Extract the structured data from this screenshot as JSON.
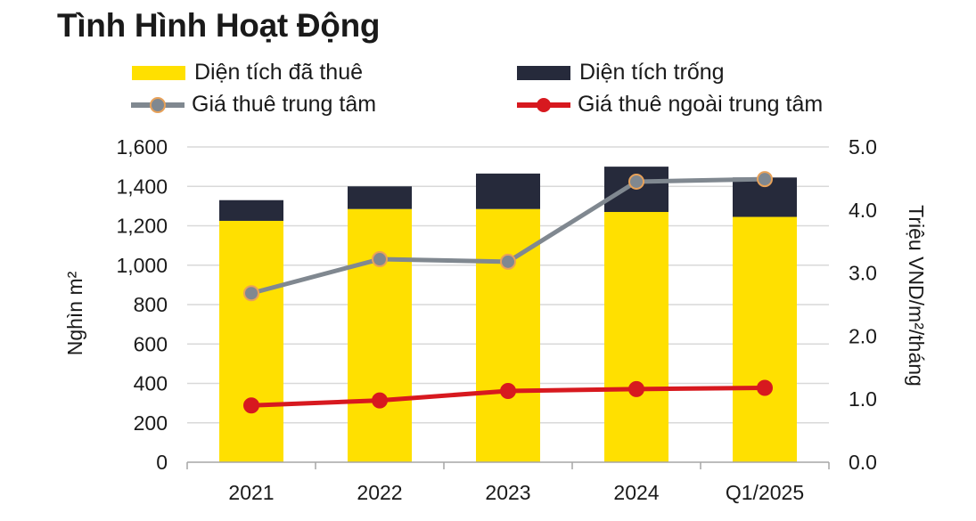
{
  "chart_data": {
    "type": "bar",
    "title": "Tình Hình Hoạt Động",
    "categories": [
      "2021",
      "2022",
      "2023",
      "2024",
      "Q1/2025"
    ],
    "ylabel": "Nghìn m²",
    "y2label": "Triệu VND/m²/tháng",
    "ylim": [
      0,
      1600
    ],
    "y2lim": [
      0,
      5.0
    ],
    "yticks": [
      "0",
      "200",
      "400",
      "600",
      "800",
      "1,000",
      "1,200",
      "1,400",
      "1,600"
    ],
    "y2ticks": [
      "0.0",
      "1.0",
      "2.0",
      "3.0",
      "4.0",
      "5.0"
    ],
    "grid": true,
    "stacked": true,
    "series": [
      {
        "name": "Diện tích đã thuê",
        "kind": "bar",
        "axis": "left",
        "color": "#FFE000",
        "values": [
          1225,
          1285,
          1285,
          1270,
          1245
        ]
      },
      {
        "name": "Diện tích trống",
        "kind": "bar",
        "axis": "left",
        "color": "#262A3B",
        "values": [
          105,
          115,
          180,
          230,
          200
        ]
      },
      {
        "name": "Giá thuê trung tâm",
        "kind": "line",
        "axis": "right",
        "color": "#808890",
        "marker_fill": "#808890",
        "marker_edge": "#E8A25A",
        "values": [
          2.68,
          3.22,
          3.18,
          4.45,
          4.49
        ]
      },
      {
        "name": "Giá thuê ngoài trung tâm",
        "kind": "line",
        "axis": "right",
        "color": "#D7191F",
        "marker_fill": "#D7191F",
        "marker_edge": "#D7191F",
        "values": [
          0.9,
          0.98,
          1.13,
          1.16,
          1.18
        ]
      }
    ]
  }
}
